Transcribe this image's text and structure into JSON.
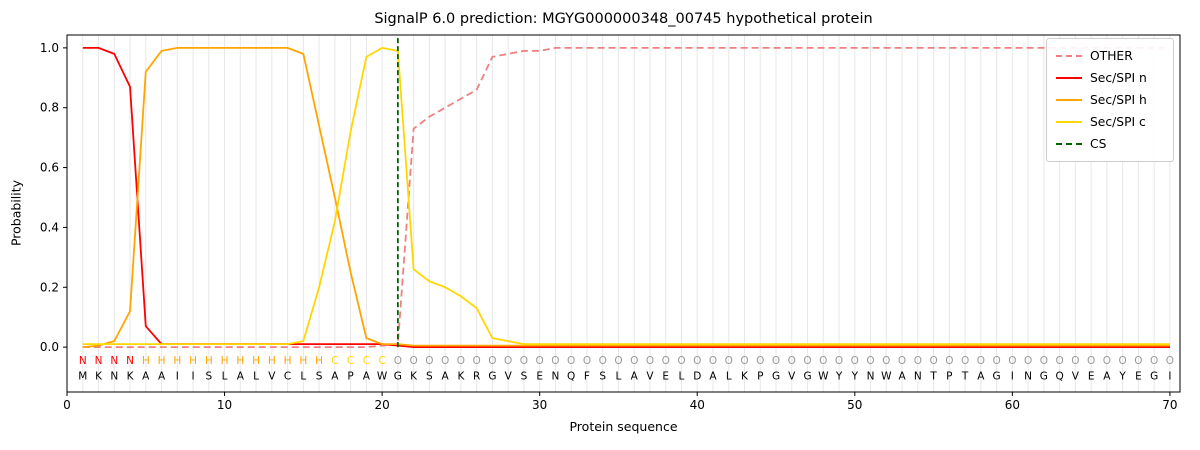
{
  "chart_data": {
    "type": "line",
    "title": "SignalP 6.0 prediction: MGYG000000348_00745 hypothetical protein",
    "xlabel": "Protein sequence",
    "ylabel": "Probability",
    "xlim": [
      0,
      70.64
    ],
    "ylim": [
      -0.15,
      1.043
    ],
    "xticks": [
      0,
      10,
      20,
      30,
      40,
      50,
      60,
      70
    ],
    "yticks": [
      "0.0",
      "0.2",
      "0.4",
      "0.6",
      "0.8",
      "1.0"
    ],
    "grid": "vertical line per residue",
    "legend_position": "upper right",
    "cs_position": 21,
    "sequence": "MKNKAAIISLALVCLSAPAWGKSAKRGVSENQFSLAVELDALKPGVGWYYNWANTPTAGINGQVEAYEGI",
    "region_labels": "NNNNHHHHHHHHHHHHCCCCOOOOOOOOOOOOOOOOOOOOOOOOOOOOOOOOOOOOOOOOOOOOOOOOOO",
    "region_colors": {
      "N": "#ff0000",
      "H": "#ffa500",
      "C": "#ffd700",
      "O": "#999999"
    },
    "colors": {
      "grid": "#e7e7e7",
      "frame": "#000000",
      "tick": "#000000"
    },
    "series": [
      {
        "name": "OTHER",
        "color": "#f08080",
        "dash": true,
        "values": [
          0,
          0,
          0,
          0,
          0,
          0,
          0,
          0,
          0,
          0,
          0,
          0,
          0,
          0,
          0,
          0,
          0,
          0,
          0,
          0.005,
          0.01,
          0.73,
          0.77,
          0.8,
          0.83,
          0.86,
          0.97,
          0.98,
          0.99,
          0.99,
          1,
          1,
          1,
          1,
          1,
          1,
          1,
          1,
          1,
          1,
          1,
          1,
          1,
          1,
          1,
          1,
          1,
          1,
          1,
          1,
          1,
          1,
          1,
          1,
          1,
          1,
          1,
          1,
          1,
          1,
          1,
          1,
          1,
          1,
          1,
          1,
          1,
          1,
          1,
          1
        ]
      },
      {
        "name": "Sec/SPI n",
        "color": "#ff0000",
        "dash": false,
        "values": [
          1,
          1,
          0.98,
          0.87,
          0.07,
          0.01,
          0.01,
          0.01,
          0.01,
          0.01,
          0.01,
          0.01,
          0.01,
          0.01,
          0.01,
          0.01,
          0.01,
          0.01,
          0.01,
          0.01,
          0.005,
          0,
          0,
          0,
          0,
          0,
          0,
          0,
          0,
          0,
          0,
          0,
          0,
          0,
          0,
          0,
          0,
          0,
          0,
          0,
          0,
          0,
          0,
          0,
          0,
          0,
          0,
          0,
          0,
          0,
          0,
          0,
          0,
          0,
          0,
          0,
          0,
          0,
          0,
          0,
          0,
          0,
          0,
          0,
          0,
          0,
          0,
          0,
          0,
          0
        ]
      },
      {
        "name": "Sec/SPI h",
        "color": "#ffa500",
        "dash": false,
        "values": [
          0,
          0.005,
          0.02,
          0.12,
          0.92,
          0.99,
          1,
          1,
          1,
          1,
          1,
          1,
          1,
          1,
          0.98,
          0.74,
          0.5,
          0.25,
          0.03,
          0.01,
          0.01,
          0.005,
          0.005,
          0.005,
          0.005,
          0.005,
          0.005,
          0.005,
          0.005,
          0.005,
          0.005,
          0.005,
          0.005,
          0.005,
          0.005,
          0.005,
          0.005,
          0.005,
          0.005,
          0.005,
          0.005,
          0.005,
          0.005,
          0.005,
          0.005,
          0.005,
          0.005,
          0.005,
          0.005,
          0.005,
          0.005,
          0.005,
          0.005,
          0.005,
          0.005,
          0.005,
          0.005,
          0.005,
          0.005,
          0.005,
          0.005,
          0.005,
          0.005,
          0.005,
          0.005,
          0.005,
          0.005,
          0.005,
          0.005,
          0.005
        ]
      },
      {
        "name": "Sec/SPI c",
        "color": "#ffd700",
        "dash": false,
        "values": [
          0.01,
          0.01,
          0.01,
          0.01,
          0.01,
          0.01,
          0.01,
          0.01,
          0.01,
          0.01,
          0.01,
          0.01,
          0.01,
          0.01,
          0.02,
          0.2,
          0.42,
          0.72,
          0.97,
          1,
          0.99,
          0.26,
          0.22,
          0.2,
          0.17,
          0.13,
          0.03,
          0.02,
          0.01,
          0.01,
          0.01,
          0.01,
          0.01,
          0.01,
          0.01,
          0.01,
          0.01,
          0.01,
          0.01,
          0.01,
          0.01,
          0.01,
          0.01,
          0.01,
          0.01,
          0.01,
          0.01,
          0.01,
          0.01,
          0.01,
          0.01,
          0.01,
          0.01,
          0.01,
          0.01,
          0.01,
          0.01,
          0.01,
          0.01,
          0.01,
          0.01,
          0.01,
          0.01,
          0.01,
          0.01,
          0.01,
          0.01,
          0.01,
          0.01,
          0.01
        ]
      },
      {
        "name": "CS",
        "color": "#006400",
        "dash": true,
        "type": "vline",
        "x": 21
      }
    ]
  }
}
